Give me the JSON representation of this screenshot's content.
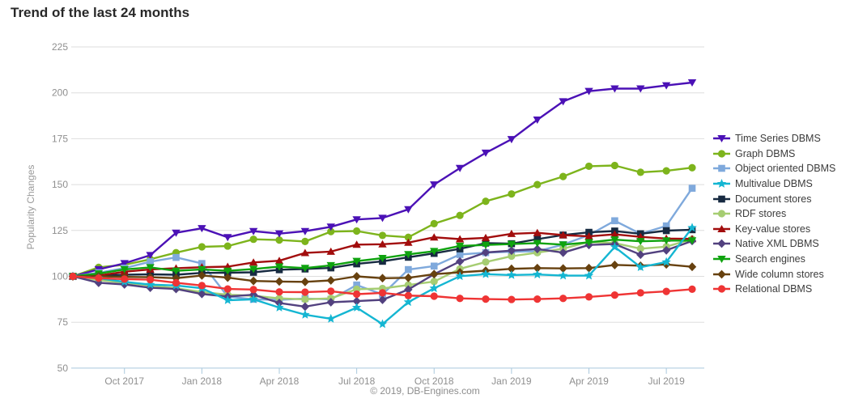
{
  "title": "Trend of the last 24 months",
  "footer": "© 2019, DB-Engines.com",
  "colors": {
    "background": "#ffffff",
    "grid_line": "#dedede",
    "axis_line": "#a9c8dc",
    "tick_text": "#8f8f8f",
    "axis_title_text": "#9a9a9a",
    "title_text": "#282828",
    "legend_text": "#3c3c3c",
    "footer_text": "#8d8d8d"
  },
  "chart_data": {
    "type": "line",
    "title": "Trend of the last 24 months",
    "xlabel": "",
    "ylabel": "Popularity Changes",
    "ylim": [
      50,
      225
    ],
    "y_ticks": [
      50,
      75,
      100,
      125,
      150,
      175,
      200,
      225
    ],
    "grid": true,
    "legend_position": "right",
    "x": [
      "Aug 2017",
      "Sep 2017",
      "Oct 2017",
      "Nov 2017",
      "Dec 2017",
      "Jan 2018",
      "Feb 2018",
      "Mar 2018",
      "Apr 2018",
      "May 2018",
      "Jun 2018",
      "Jul 2018",
      "Aug 2018",
      "Sep 2018",
      "Oct 2018",
      "Nov 2018",
      "Dec 2018",
      "Jan 2019",
      "Feb 2019",
      "Mar 2019",
      "Apr 2019",
      "May 2019",
      "Jun 2019",
      "Jul 2019",
      "Aug 2019"
    ],
    "x_ticks": [
      {
        "index": 2,
        "label": "Oct 2017"
      },
      {
        "index": 5,
        "label": "Jan 2018"
      },
      {
        "index": 8,
        "label": "Apr 2018"
      },
      {
        "index": 11,
        "label": "Jul 2018"
      },
      {
        "index": 14,
        "label": "Oct 2018"
      },
      {
        "index": 17,
        "label": "Jan 2019"
      },
      {
        "index": 20,
        "label": "Apr 2019"
      },
      {
        "index": 23,
        "label": "Jul 2019"
      }
    ],
    "series": [
      {
        "name": "Time Series DBMS",
        "color": "#4b11b6",
        "marker": "triangle-down",
        "values": [
          100,
          103.8,
          107.1,
          111.5,
          123.7,
          126.2,
          121.3,
          124.6,
          123.3,
          124.6,
          127.0,
          131.0,
          131.8,
          136.5,
          150.0,
          159.0,
          167.3,
          174.7,
          185.3,
          195.3,
          200.9,
          202.3,
          202.3,
          204.0,
          205.6
        ]
      },
      {
        "name": "Graph DBMS",
        "color": "#7db41c",
        "marker": "circle",
        "values": [
          100,
          104.9,
          106.3,
          109.3,
          112.9,
          116.1,
          116.5,
          120.2,
          119.8,
          119.0,
          124.4,
          124.7,
          122.3,
          121.3,
          128.7,
          133.2,
          140.9,
          144.9,
          150.0,
          154.4,
          160.0,
          160.4,
          156.7,
          157.5,
          159.2
        ]
      },
      {
        "name": "Object oriented DBMS",
        "color": "#7fa9dc",
        "marker": "square",
        "values": [
          100,
          102.0,
          104.5,
          108.0,
          110.3,
          107.0,
          89.0,
          87.5,
          87.2,
          87.9,
          87.5,
          95.3,
          90.2,
          103.7,
          105.6,
          111.9,
          112.9,
          113.4,
          113.7,
          117.3,
          122.5,
          130.3,
          123.2,
          127.5,
          148.0
        ]
      },
      {
        "name": "Multivalue DBMS",
        "color": "#14b6d2",
        "marker": "star",
        "values": [
          100,
          99.0,
          97.0,
          95.5,
          95.0,
          93.5,
          87.0,
          87.5,
          83.0,
          79.1,
          76.9,
          83.0,
          74.0,
          86.0,
          93.5,
          100.1,
          101.2,
          100.7,
          101.0,
          100.4,
          100.4,
          116.0,
          105.0,
          107.8,
          126.5
        ]
      },
      {
        "name": "Document stores",
        "color": "#172a41",
        "marker": "square",
        "values": [
          100,
          100.5,
          100.9,
          101.1,
          100.9,
          101.9,
          102.0,
          102.2,
          103.6,
          104.0,
          104.6,
          106.8,
          108.2,
          110.4,
          112.5,
          115.0,
          118.1,
          117.8,
          120.3,
          122.5,
          124.0,
          124.7,
          123.2,
          124.9,
          125.4
        ]
      },
      {
        "name": "RDF stores",
        "color": "#a6cd72",
        "marker": "circle",
        "values": [
          100,
          98.0,
          96.5,
          95.0,
          93.5,
          91.5,
          90.0,
          89.4,
          88.0,
          87.5,
          88.0,
          93.0,
          93.4,
          95.3,
          97.2,
          104.1,
          107.8,
          111.0,
          112.9,
          115.1,
          118.8,
          118.1,
          115.1,
          116.2,
          120.3
        ]
      },
      {
        "name": "Key-value stores",
        "color": "#a20d0d",
        "marker": "triangle-up",
        "values": [
          100,
          100.5,
          102.5,
          103.8,
          104.4,
          105.0,
          105.3,
          107.6,
          108.5,
          112.8,
          113.5,
          117.3,
          117.5,
          118.4,
          121.3,
          120.3,
          121.0,
          123.2,
          123.7,
          122.5,
          121.8,
          122.9,
          121.5,
          120.6,
          120.4
        ]
      },
      {
        "name": "Native XML DBMS",
        "color": "#52417f",
        "marker": "diamond",
        "values": [
          100,
          96.5,
          95.6,
          93.8,
          93.1,
          90.4,
          89.0,
          90.0,
          85.5,
          83.5,
          85.9,
          86.5,
          87.2,
          92.8,
          101.2,
          108.1,
          113.0,
          114.0,
          114.9,
          112.9,
          117.1,
          117.6,
          111.8,
          114.2,
          119.3
        ]
      },
      {
        "name": "Search engines",
        "color": "#0fa30f",
        "marker": "triangle-down",
        "values": [
          100,
          101.5,
          103.8,
          104.9,
          103.0,
          103.8,
          103.0,
          104.0,
          105.3,
          104.5,
          106.0,
          108.3,
          109.9,
          112.0,
          113.7,
          116.6,
          117.1,
          117.6,
          118.1,
          117.3,
          118.5,
          120.0,
          119.1,
          119.5,
          119.5
        ]
      },
      {
        "name": "Wide column stores",
        "color": "#67410f",
        "marker": "diamond",
        "values": [
          100,
          100.0,
          99.7,
          99.5,
          99.0,
          100.5,
          99.3,
          97.5,
          97.2,
          97.0,
          97.8,
          100.0,
          99.0,
          99.2,
          101.2,
          102.2,
          103.1,
          104.1,
          104.5,
          104.3,
          104.5,
          106.2,
          105.8,
          106.5,
          105.2
        ]
      },
      {
        "name": "Relational DBMS",
        "color": "#ef3434",
        "marker": "circle",
        "values": [
          100,
          99.0,
          98.5,
          98.2,
          96.5,
          95.0,
          93.1,
          92.8,
          91.5,
          91.4,
          91.9,
          90.3,
          91.0,
          89.5,
          89.2,
          88.0,
          87.6,
          87.4,
          87.6,
          88.0,
          88.8,
          89.8,
          91.0,
          91.8,
          93.0
        ]
      }
    ]
  }
}
